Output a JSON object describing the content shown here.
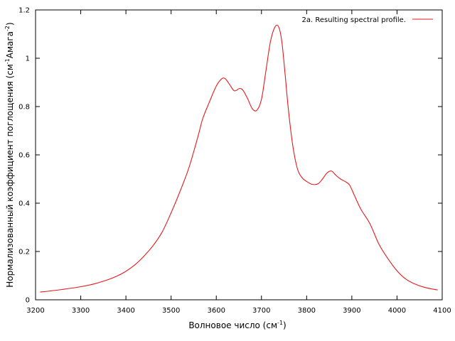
{
  "chart_data": {
    "type": "line",
    "title": "",
    "xlabel": "Волновое число (см",
    "xlabel_sup": "-1",
    "xlabel_end": ")",
    "ylabel_parts": [
      "Нормализованный коэффициент поглощения (см",
      "-1",
      "Амага",
      "-2",
      ")"
    ],
    "xlim": [
      3200,
      4100
    ],
    "ylim": [
      0,
      1.2
    ],
    "xticks": [
      3200,
      3300,
      3400,
      3500,
      3600,
      3700,
      3800,
      3900,
      4000,
      4100
    ],
    "yticks": [
      0,
      0.2,
      0.4,
      0.6,
      0.8,
      1,
      1.2
    ],
    "ytick_labels": [
      "0",
      "0.2",
      "0.4",
      "0.6",
      "0.8",
      "1",
      "1.2"
    ],
    "grid": false,
    "legend_position": "top-right",
    "series": [
      {
        "name": "2a. Resulting spectral profile.",
        "color": "#e41a1c",
        "x": [
          3210,
          3230,
          3260,
          3300,
          3330,
          3360,
          3380,
          3400,
          3420,
          3440,
          3460,
          3480,
          3500,
          3520,
          3540,
          3560,
          3570,
          3585,
          3600,
          3612,
          3620,
          3630,
          3640,
          3652,
          3660,
          3670,
          3680,
          3690,
          3700,
          3710,
          3720,
          3730,
          3738,
          3745,
          3752,
          3760,
          3770,
          3780,
          3790,
          3800,
          3812,
          3825,
          3835,
          3845,
          3855,
          3865,
          3875,
          3885,
          3895,
          3905,
          3920,
          3940,
          3960,
          3980,
          4000,
          4020,
          4040,
          4060,
          4080,
          4090
        ],
        "y": [
          0.032,
          0.036,
          0.043,
          0.054,
          0.066,
          0.083,
          0.098,
          0.118,
          0.145,
          0.181,
          0.224,
          0.28,
          0.36,
          0.45,
          0.55,
          0.68,
          0.75,
          0.82,
          0.885,
          0.915,
          0.915,
          0.89,
          0.865,
          0.875,
          0.865,
          0.83,
          0.79,
          0.785,
          0.83,
          0.95,
          1.07,
          1.13,
          1.13,
          1.07,
          0.94,
          0.78,
          0.63,
          0.54,
          0.505,
          0.49,
          0.478,
          0.48,
          0.5,
          0.525,
          0.533,
          0.515,
          0.5,
          0.49,
          0.475,
          0.435,
          0.375,
          0.315,
          0.23,
          0.17,
          0.12,
          0.085,
          0.065,
          0.052,
          0.044,
          0.041
        ]
      }
    ]
  }
}
